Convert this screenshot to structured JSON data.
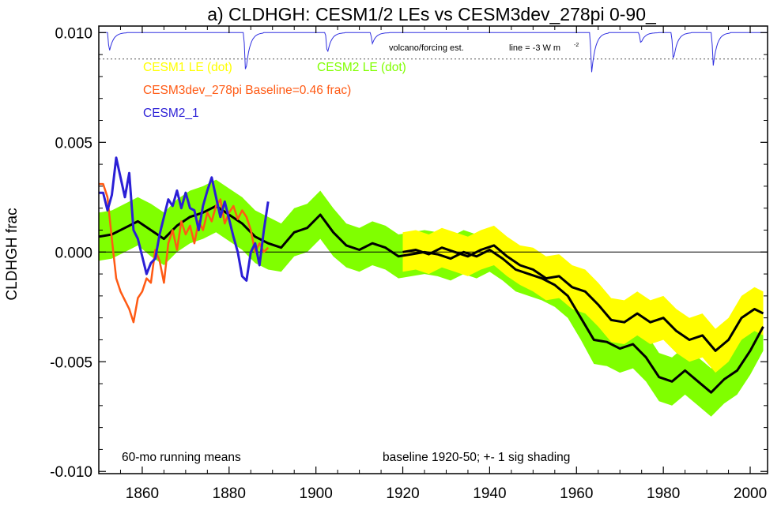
{
  "chart_data": {
    "type": "line",
    "title": "a) CLDHGH: CESM1/2 LEs vs CESM3dev_278pi 0-90_",
    "ylabel": "CLDHGH frac",
    "xlabel": "",
    "xlim": [
      1850,
      2004
    ],
    "ylim": [
      -0.0101,
      0.0103
    ],
    "x_ticks": [
      1860,
      1880,
      1900,
      1920,
      1940,
      1960,
      1980,
      2000
    ],
    "y_ticks": [
      0.01,
      0.005,
      0.0,
      -0.005,
      -0.01
    ],
    "y_tick_labels": [
      "0.010",
      "0.005",
      "0.000",
      "-0.005",
      "-0.010"
    ],
    "grid": false,
    "zero_line": true,
    "legend_location": "top-left (inside plot)",
    "legend": [
      {
        "label": "CESM1 LE (dot)",
        "color": "#ffff00"
      },
      {
        "label": "CESM2 LE (dot)",
        "color": "#80ff00"
      },
      {
        "label": "CESM3dev_278pi Baseline=0.46 frac)",
        "color": "#ff5a14"
      },
      {
        "label": "CESM2_1",
        "color": "#2b1fd6"
      }
    ],
    "annotations": {
      "volcano": "volcano/forcing est.",
      "line_note": "line = -3 W m",
      "line_note_sup": "-2",
      "running_mean": "60-mo running means",
      "baseline": "baseline 1920-50; +- 1 sig shading"
    },
    "colors": {
      "cesm1_band": "#ffff00",
      "cesm2_band": "#80ff00",
      "mean_line": "#000000",
      "cesm3dev": "#ff5a14",
      "cesm2_1": "#2b1fd6",
      "volcano": "#3030e0"
    },
    "series": [
      {
        "name": "CESM2 LE (dot)",
        "kind": "mean_with_band",
        "x": [
          1850,
          1853,
          1856,
          1859,
          1862,
          1865,
          1868,
          1871,
          1874,
          1877,
          1880,
          1883,
          1886,
          1889,
          1892,
          1895,
          1898,
          1901,
          1904,
          1907,
          1910,
          1913,
          1916,
          1919,
          1922,
          1925,
          1928,
          1931,
          1934,
          1937,
          1940,
          1943,
          1946,
          1949,
          1952,
          1955,
          1958,
          1961,
          1964,
          1967,
          1970,
          1973,
          1976,
          1979,
          1982,
          1985,
          1988,
          1991,
          1994,
          1997,
          2000,
          2003
        ],
        "mean": [
          0.0007,
          0.0008,
          0.0011,
          0.0014,
          0.001,
          0.0006,
          0.0012,
          0.0016,
          0.0018,
          0.0021,
          0.0017,
          0.0013,
          0.0007,
          0.0004,
          0.0002,
          0.0009,
          0.0011,
          0.0017,
          0.0009,
          0.0003,
          0.0001,
          0.0004,
          0.0002,
          -0.0002,
          -0.0001,
          0.0,
          -0.0001,
          -0.0003,
          0.0,
          -0.0002,
          0.0001,
          -0.0003,
          -0.0008,
          -0.001,
          -0.0012,
          -0.0015,
          -0.002,
          -0.003,
          -0.004,
          -0.0041,
          -0.0044,
          -0.0042,
          -0.0048,
          -0.0057,
          -0.0059,
          -0.0054,
          -0.0059,
          -0.0064,
          -0.0058,
          -0.0054,
          -0.0045,
          -0.0034
        ],
        "sigma": [
          0.0011,
          0.0011,
          0.0011,
          0.0011,
          0.0012,
          0.0012,
          0.0012,
          0.0012,
          0.0012,
          0.0012,
          0.0012,
          0.0012,
          0.0012,
          0.0012,
          0.0011,
          0.0011,
          0.0011,
          0.0011,
          0.0011,
          0.001,
          0.001,
          0.001,
          0.001,
          0.001,
          0.001,
          0.001,
          0.001,
          0.001,
          0.001,
          0.001,
          0.001,
          0.001,
          0.001,
          0.001,
          0.001,
          0.001,
          0.001,
          0.001,
          0.0011,
          0.0011,
          0.0011,
          0.0011,
          0.0011,
          0.0011,
          0.0011,
          0.0011,
          0.0011,
          0.0011,
          0.0011,
          0.0011,
          0.0011,
          0.0011
        ]
      },
      {
        "name": "CESM1 LE (dot)",
        "kind": "mean_with_band",
        "x": [
          1920,
          1923,
          1926,
          1929,
          1932,
          1935,
          1938,
          1941,
          1944,
          1947,
          1950,
          1953,
          1956,
          1959,
          1962,
          1965,
          1968,
          1971,
          1974,
          1977,
          1980,
          1983,
          1986,
          1989,
          1992,
          1995,
          1998,
          2001,
          2003
        ],
        "mean": [
          0.0,
          0.0001,
          -0.0001,
          0.0002,
          0.0,
          -0.0002,
          0.0001,
          0.0003,
          -0.0002,
          -0.0006,
          -0.0008,
          -0.0012,
          -0.0011,
          -0.0016,
          -0.0018,
          -0.0024,
          -0.0031,
          -0.0032,
          -0.0028,
          -0.0032,
          -0.003,
          -0.0036,
          -0.004,
          -0.0038,
          -0.0045,
          -0.004,
          -0.003,
          -0.0026,
          -0.0028
        ],
        "sigma": [
          0.0009,
          0.0009,
          0.0009,
          0.0009,
          0.0009,
          0.0009,
          0.0009,
          0.0009,
          0.0009,
          0.0009,
          0.001,
          0.001,
          0.001,
          0.001,
          0.001,
          0.001,
          0.001,
          0.001,
          0.001,
          0.001,
          0.001,
          0.001,
          0.001,
          0.001,
          0.001,
          0.001,
          0.001,
          0.001,
          0.001
        ]
      },
      {
        "name": "CESM3dev_278pi Baseline=0.46 frac)",
        "kind": "line",
        "x": [
          1850,
          1851,
          1852,
          1853,
          1854,
          1855,
          1856,
          1857,
          1858,
          1859,
          1860,
          1861,
          1862,
          1863,
          1864,
          1865,
          1866,
          1867,
          1868,
          1869,
          1870,
          1871,
          1872,
          1873,
          1874,
          1875,
          1876,
          1877,
          1878,
          1879,
          1880,
          1881,
          1882,
          1883,
          1884,
          1885,
          1886,
          1887,
          1888,
          1889
        ],
        "values": [
          0.0031,
          0.0031,
          0.0025,
          0.0006,
          -0.0012,
          -0.0018,
          -0.0022,
          -0.0026,
          -0.0032,
          -0.0021,
          -0.0018,
          -0.0012,
          -0.0014,
          0.0001,
          -0.0004,
          -0.0014,
          0.0004,
          0.001,
          0.0001,
          0.0014,
          0.0008,
          0.0012,
          0.0004,
          0.0014,
          0.001,
          0.0018,
          0.0014,
          0.0021,
          0.0024,
          0.0013,
          0.0018,
          0.0021,
          0.0015,
          0.0019,
          0.0016,
          0.001,
          0.0,
          0.0004,
          0.0,
          0.0002
        ]
      },
      {
        "name": "CESM2_1",
        "kind": "line",
        "x": [
          1850,
          1851,
          1852,
          1853,
          1854,
          1855,
          1856,
          1857,
          1858,
          1859,
          1860,
          1861,
          1862,
          1863,
          1864,
          1865,
          1866,
          1867,
          1868,
          1869,
          1870,
          1871,
          1872,
          1873,
          1874,
          1875,
          1876,
          1877,
          1878,
          1879,
          1880,
          1881,
          1882,
          1883,
          1884,
          1885,
          1886,
          1887,
          1888,
          1889
        ],
        "values": [
          0.0027,
          0.0027,
          0.0019,
          0.0026,
          0.0043,
          0.0034,
          0.0025,
          0.0036,
          0.001,
          0.0006,
          -0.0002,
          -0.001,
          -0.0005,
          -0.0003,
          0.0008,
          0.0016,
          0.0024,
          0.0021,
          0.0028,
          0.002,
          0.0027,
          0.002,
          0.0019,
          0.001,
          0.0021,
          0.0028,
          0.0034,
          0.0025,
          0.0016,
          0.0023,
          0.0015,
          0.0007,
          0.0,
          -0.0011,
          -0.0013,
          0.0,
          0.0004,
          -0.0006,
          0.001,
          0.0023
        ]
      }
    ],
    "volcano_events": [
      {
        "year": 1852.4,
        "depth": 0.0009
      },
      {
        "year": 1883.8,
        "depth": 0.0019
      },
      {
        "year": 1902.6,
        "depth": 0.001
      },
      {
        "year": 1913.0,
        "depth": 0.0005
      },
      {
        "year": 1963.5,
        "depth": 0.0018
      },
      {
        "year": 1974.8,
        "depth": 0.0005
      },
      {
        "year": 1982.3,
        "depth": 0.0013
      },
      {
        "year": 1991.5,
        "depth": 0.0015
      }
    ],
    "volcano_baseline": 0.01,
    "volcano_ref_line": 0.0088
  }
}
